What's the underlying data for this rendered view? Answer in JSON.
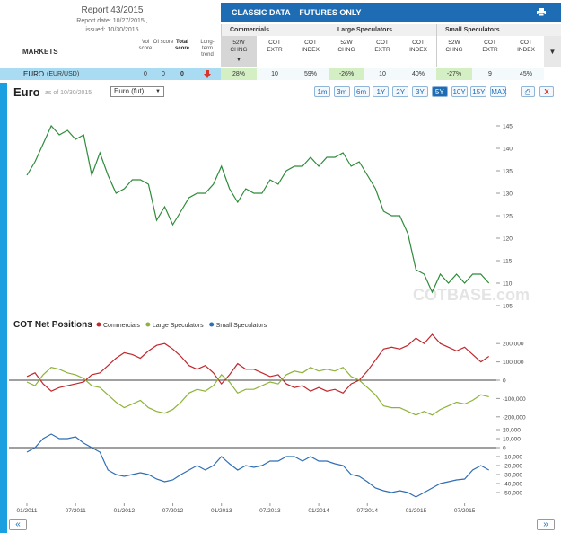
{
  "header": {
    "report": "Report 43/2015",
    "report_date": "Report date: 10/27/2015 ,",
    "issued": "issued: 10/30/2015",
    "markets_label": "MARKETS",
    "columns": [
      "Vol score",
      "OI score",
      "Total score",
      "Long-term trend"
    ]
  },
  "panel": {
    "title": "CLASSIC DATA – FUTURES ONLY",
    "groups": [
      {
        "name": "Commercials",
        "columns": [
          "52W CHNG",
          "COT EXTR",
          "COT INDEX"
        ]
      },
      {
        "name": "Large Speculators",
        "columns": [
          "52W CHNG",
          "COT EXTR",
          "COT INDEX"
        ]
      },
      {
        "name": "Small Speculators",
        "columns": [
          "52W CHNG",
          "COT EXTR",
          "COT INDEX"
        ]
      }
    ]
  },
  "row": {
    "market": "EURO",
    "symbol": "(EUR/USD)",
    "scores": [
      0,
      0,
      0
    ],
    "cells": [
      "28%",
      10,
      "59%",
      "-26%",
      10,
      "40%",
      "-27%",
      9,
      "45%"
    ]
  },
  "toolbar": {
    "title": "Euro",
    "as_of": "as of 10/30/2015",
    "select": "Euro (fut)",
    "ranges": [
      "1m",
      "3m",
      "6m",
      "1Y",
      "2Y",
      "3Y",
      "5Y",
      "10Y",
      "15Y",
      "MAX"
    ],
    "active_range": "5Y"
  },
  "watermark": "COTBASE.com",
  "nav": {
    "prev": "«",
    "next": "»"
  },
  "chart_data": [
    {
      "type": "line",
      "color": "#2e8b3a",
      "x": [
        "01/2011",
        "02/2011",
        "03/2011",
        "04/2011",
        "05/2011",
        "06/2011",
        "07/2011",
        "08/2011",
        "09/2011",
        "10/2011",
        "11/2011",
        "12/2011",
        "01/2012",
        "02/2012",
        "03/2012",
        "04/2012",
        "05/2012",
        "06/2012",
        "07/2012",
        "08/2012",
        "09/2012",
        "10/2012",
        "11/2012",
        "12/2012",
        "01/2013",
        "02/2013",
        "03/2013",
        "04/2013",
        "05/2013",
        "06/2013",
        "07/2013",
        "08/2013",
        "09/2013",
        "10/2013",
        "11/2013",
        "12/2013",
        "01/2014",
        "02/2014",
        "03/2014",
        "04/2014",
        "05/2014",
        "06/2014",
        "07/2014",
        "08/2014",
        "09/2014",
        "10/2014",
        "11/2014",
        "12/2014",
        "01/2015",
        "02/2015",
        "03/2015",
        "04/2015",
        "05/2015",
        "06/2015",
        "07/2015",
        "08/2015",
        "09/2015",
        "10/2015"
      ],
      "values": [
        134,
        137,
        141,
        145,
        143,
        144,
        142,
        143,
        134,
        139,
        134,
        130,
        131,
        133,
        133,
        132,
        124,
        127,
        123,
        126,
        129,
        130,
        130,
        132,
        136,
        131,
        128,
        131,
        130,
        130,
        133,
        132,
        135,
        136,
        136,
        138,
        136,
        138,
        138,
        139,
        136,
        137,
        134,
        131,
        126,
        125,
        125,
        121,
        113,
        112,
        108,
        112,
        110,
        112,
        110,
        112,
        112,
        110
      ],
      "ylim": [
        103,
        150
      ],
      "yticks": [
        105,
        110,
        115,
        120,
        125,
        130,
        135,
        140,
        145
      ]
    },
    {
      "type": "line",
      "title": "COT Net Positions",
      "x": [
        "01/2011",
        "02/2011",
        "03/2011",
        "04/2011",
        "05/2011",
        "06/2011",
        "07/2011",
        "08/2011",
        "09/2011",
        "10/2011",
        "11/2011",
        "12/2011",
        "01/2012",
        "02/2012",
        "03/2012",
        "04/2012",
        "05/2012",
        "06/2012",
        "07/2012",
        "08/2012",
        "09/2012",
        "10/2012",
        "11/2012",
        "12/2012",
        "01/2013",
        "02/2013",
        "03/2013",
        "04/2013",
        "05/2013",
        "06/2013",
        "07/2013",
        "08/2013",
        "09/2013",
        "10/2013",
        "11/2013",
        "12/2013",
        "01/2014",
        "02/2014",
        "03/2014",
        "04/2014",
        "05/2014",
        "06/2014",
        "07/2014",
        "08/2014",
        "09/2014",
        "10/2014",
        "11/2014",
        "12/2014",
        "01/2015",
        "02/2015",
        "03/2015",
        "04/2015",
        "05/2015",
        "06/2015",
        "07/2015",
        "08/2015",
        "09/2015",
        "10/2015"
      ],
      "series": [
        {
          "name": "Commercials",
          "color": "#c0282d",
          "values": [
            20000,
            40000,
            -20000,
            -60000,
            -40000,
            -30000,
            -20000,
            -10000,
            30000,
            40000,
            80000,
            120000,
            150000,
            140000,
            120000,
            160000,
            190000,
            200000,
            170000,
            130000,
            80000,
            60000,
            80000,
            40000,
            -20000,
            30000,
            90000,
            60000,
            60000,
            40000,
            20000,
            30000,
            -20000,
            -40000,
            -30000,
            -60000,
            -40000,
            -60000,
            -50000,
            -70000,
            -20000,
            0,
            50000,
            110000,
            170000,
            180000,
            170000,
            190000,
            230000,
            200000,
            250000,
            200000,
            180000,
            160000,
            180000,
            140000,
            100000,
            130000
          ]
        },
        {
          "name": "Large Speculators",
          "color": "#8db33a",
          "values": [
            -10000,
            -30000,
            30000,
            70000,
            60000,
            40000,
            30000,
            10000,
            -30000,
            -40000,
            -80000,
            -120000,
            -150000,
            -130000,
            -110000,
            -150000,
            -170000,
            -180000,
            -160000,
            -120000,
            -70000,
            -50000,
            -60000,
            -30000,
            30000,
            -10000,
            -70000,
            -50000,
            -50000,
            -30000,
            -10000,
            -20000,
            30000,
            50000,
            40000,
            70000,
            50000,
            60000,
            50000,
            70000,
            20000,
            0,
            -40000,
            -80000,
            -140000,
            -150000,
            -150000,
            -170000,
            -190000,
            -170000,
            -190000,
            -160000,
            -140000,
            -120000,
            -130000,
            -110000,
            -80000,
            -90000
          ]
        },
        {
          "name": "Small Speculators",
          "color": "#2f6eb5",
          "axis": "y2",
          "values": [
            -5000,
            0,
            10000,
            15000,
            10000,
            10000,
            12000,
            5000,
            0,
            -5000,
            -25000,
            -30000,
            -32000,
            -30000,
            -28000,
            -30000,
            -35000,
            -38000,
            -36000,
            -30000,
            -25000,
            -20000,
            -25000,
            -20000,
            -10000,
            -18000,
            -25000,
            -20000,
            -22000,
            -20000,
            -15000,
            -15000,
            -10000,
            -10000,
            -15000,
            -10000,
            -15000,
            -15000,
            -18000,
            -20000,
            -30000,
            -32000,
            -38000,
            -45000,
            -48000,
            -50000,
            -48000,
            -50000,
            -55000,
            -50000,
            -45000,
            -40000,
            -38000,
            -36000,
            -35000,
            -25000,
            -20000,
            -25000
          ]
        }
      ],
      "ylim": [
        -250000,
        250000
      ],
      "yticks": [
        {
          "value": 200000,
          "label": "200,000"
        },
        {
          "value": 100000,
          "label": "100,000"
        },
        0,
        {
          "value": -100000,
          "label": "-100,000"
        },
        {
          "value": -200000,
          "label": "-200,000"
        }
      ],
      "y2lim": [
        -62000,
        28000
      ],
      "y2ticks": [
        {
          "value": 20000,
          "label": "20,000"
        },
        {
          "value": 10000,
          "label": "10,000"
        },
        0,
        {
          "value": -10000,
          "label": "-10,000"
        },
        {
          "value": -20000,
          "label": "-20,000"
        },
        {
          "value": -30000,
          "label": "-30,000"
        },
        {
          "value": -40000,
          "label": "-40,000"
        },
        {
          "value": -50000,
          "label": "-50,000"
        }
      ],
      "xticks": [
        "01/2011",
        "07/2011",
        "01/2012",
        "07/2012",
        "01/2013",
        "07/2013",
        "01/2014",
        "07/2014",
        "01/2015",
        "07/2015"
      ]
    }
  ]
}
